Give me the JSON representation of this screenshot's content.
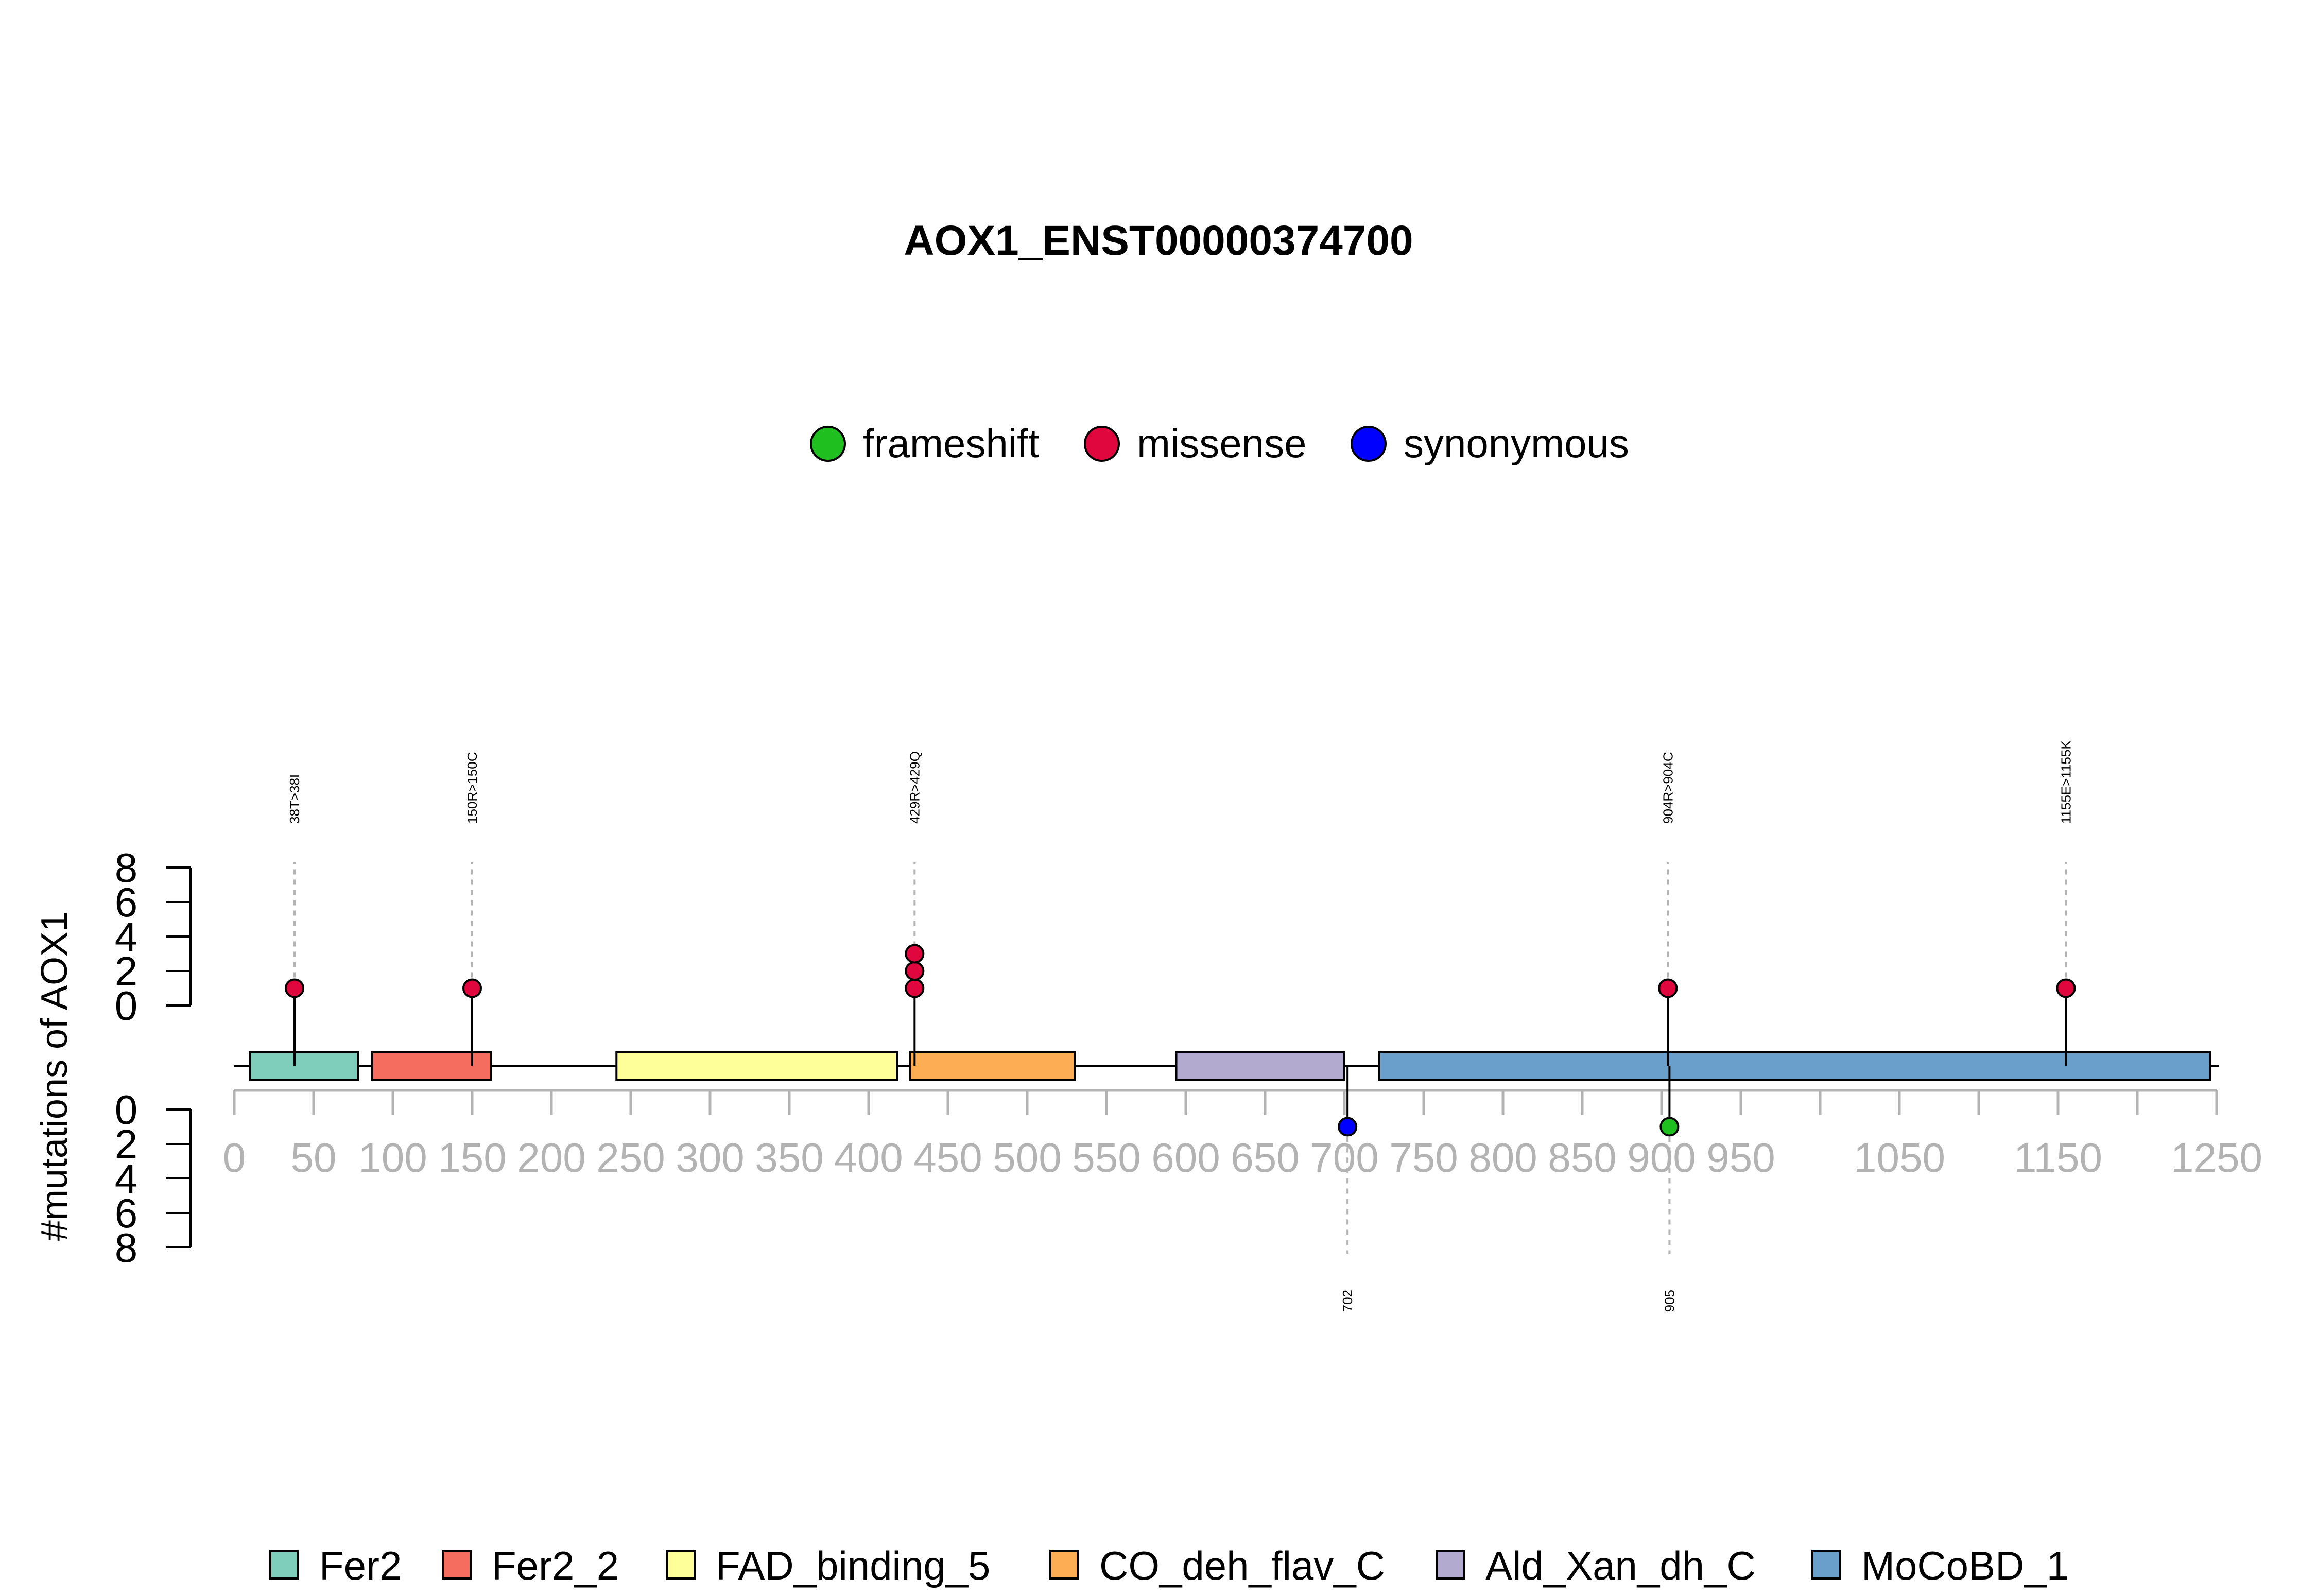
{
  "chart_data": {
    "type": "lollipop",
    "title": "AOX1_ENST00000374700",
    "ylabel": "#mutations of AOX1",
    "y_ticks": [
      0,
      2,
      4,
      6,
      8
    ],
    "y_ticks_text": [
      "0",
      "2",
      "4",
      "6",
      "8"
    ],
    "x_range": [
      0,
      1250
    ],
    "x_ticks": [
      0,
      50,
      100,
      150,
      200,
      250,
      300,
      350,
      400,
      450,
      500,
      550,
      600,
      650,
      700,
      750,
      800,
      850,
      900,
      950,
      1000,
      1050,
      1100,
      1150,
      1200,
      1250
    ],
    "x_tick_labels": [
      {
        "x": 0,
        "text": "0"
      },
      {
        "x": 50,
        "text": "50"
      },
      {
        "x": 100,
        "text": "100"
      },
      {
        "x": 150,
        "text": "150"
      },
      {
        "x": 200,
        "text": "200"
      },
      {
        "x": 250,
        "text": "250"
      },
      {
        "x": 300,
        "text": "300"
      },
      {
        "x": 350,
        "text": "350"
      },
      {
        "x": 400,
        "text": "400"
      },
      {
        "x": 450,
        "text": "450"
      },
      {
        "x": 500,
        "text": "500"
      },
      {
        "x": 550,
        "text": "550"
      },
      {
        "x": 600,
        "text": "600"
      },
      {
        "x": 650,
        "text": "650"
      },
      {
        "x": 700,
        "text": "700"
      },
      {
        "x": 750,
        "text": "750"
      },
      {
        "x": 800,
        "text": "800"
      },
      {
        "x": 850,
        "text": "850"
      },
      {
        "x": 900,
        "text": "900"
      },
      {
        "x": 950,
        "text": "950"
      },
      {
        "x": 1050,
        "text": "1050"
      },
      {
        "x": 1150,
        "text": "1150"
      },
      {
        "x": 1250,
        "text": "1250"
      }
    ],
    "mutation_legend": [
      {
        "name": "frameshift",
        "color": "#1fbf1f"
      },
      {
        "name": "missense",
        "color": "#e0073f"
      },
      {
        "name": "synonymous",
        "color": "#0000ff"
      }
    ],
    "domains": [
      {
        "name": "Fer2",
        "start": 10,
        "end": 78,
        "color": "#7fcdbb"
      },
      {
        "name": "Fer2_2",
        "start": 87,
        "end": 162,
        "color": "#f46d5f"
      },
      {
        "name": "FAD_binding_5",
        "start": 241,
        "end": 418,
        "color": "#ffff99"
      },
      {
        "name": "CO_deh_flav_C",
        "start": 426,
        "end": 530,
        "color": "#fdae54"
      },
      {
        "name": "Ald_Xan_dh_C",
        "start": 594,
        "end": 700,
        "color": "#b3aacf"
      },
      {
        "name": "MoCoBD_1",
        "start": 722,
        "end": 1246,
        "color": "#6a9ecb"
      }
    ],
    "mutations_top": [
      {
        "position": 38,
        "label": "38T>38I",
        "type": "missense",
        "count": 1
      },
      {
        "position": 150,
        "label": "150R>150C",
        "type": "missense",
        "count": 1
      },
      {
        "position": 429,
        "label": "429R>429Q",
        "type": "missense",
        "count": 3
      },
      {
        "position": 904,
        "label": "904R>904C",
        "type": "missense",
        "count": 1
      },
      {
        "position": 1155,
        "label": "1155E>1155K",
        "type": "missense",
        "count": 1
      }
    ],
    "mutations_bottom": [
      {
        "position": 702,
        "label": "702",
        "type": "synonymous",
        "count": 1
      },
      {
        "position": 905,
        "label": "905",
        "type": "frameshift",
        "count": 1
      }
    ]
  }
}
